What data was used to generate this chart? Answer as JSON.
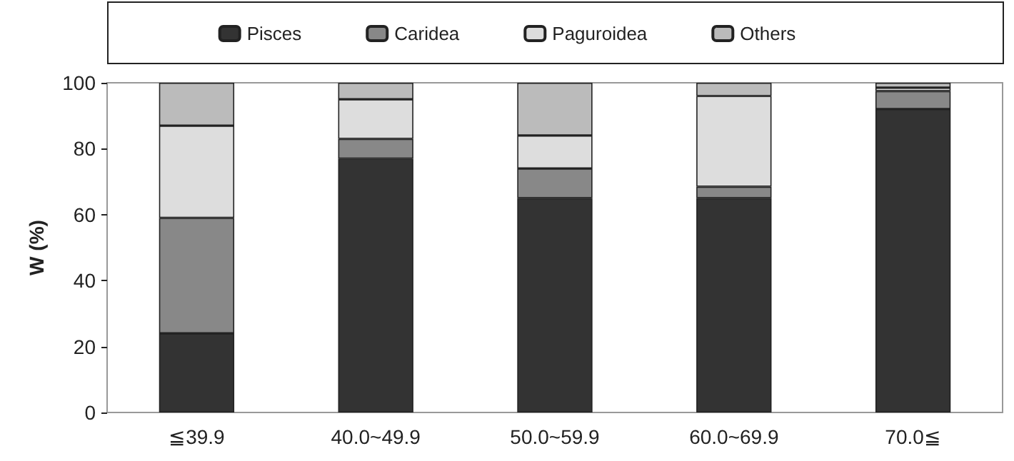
{
  "chart_data": {
    "type": "bar",
    "stacked": true,
    "ylabel": "W (%)",
    "categories": [
      "≦39.9",
      "40.0~49.9",
      "50.0~59.9",
      "60.0~69.9",
      "70.0≦"
    ],
    "series": [
      {
        "name": "Pisces",
        "color": "#333333",
        "values": [
          24,
          77,
          65,
          65,
          92
        ]
      },
      {
        "name": "Caridea",
        "color": "#888888",
        "values": [
          35,
          6,
          9,
          3.5,
          5.5
        ]
      },
      {
        "name": "Paguroidea",
        "color": "#dddddd",
        "values": [
          28,
          12,
          10,
          27.5,
          1
        ]
      },
      {
        "name": "Others",
        "color": "#bbbbbb",
        "values": [
          13,
          5,
          16,
          4,
          1.5
        ]
      }
    ],
    "ylim": [
      0,
      100
    ],
    "yticks": [
      0,
      20,
      40,
      60,
      80,
      100
    ],
    "grid": false,
    "legend": "top"
  }
}
